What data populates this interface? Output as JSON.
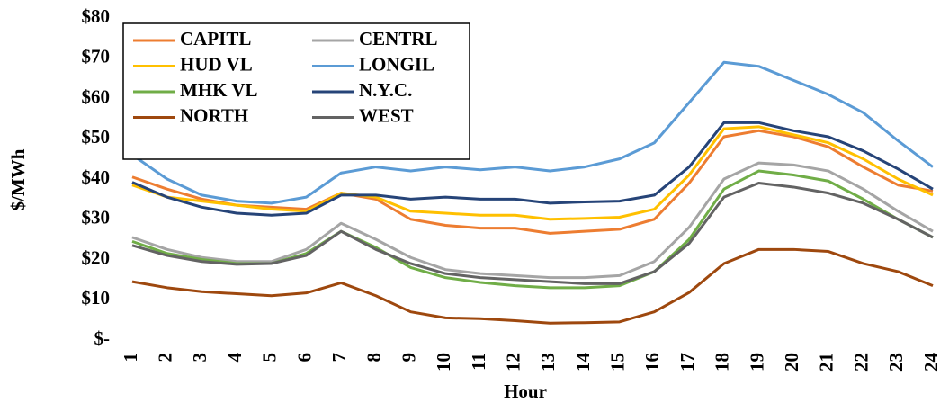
{
  "chart_data": {
    "type": "line",
    "xlabel": "Hour",
    "ylabel": "$/MWh",
    "categories": [
      1,
      2,
      3,
      4,
      5,
      6,
      7,
      8,
      9,
      10,
      11,
      12,
      13,
      14,
      15,
      16,
      17,
      18,
      19,
      20,
      21,
      22,
      23,
      24
    ],
    "series": [
      {
        "name": "CAPITL",
        "color": "#ED7D31",
        "values": [
          40.5,
          37.5,
          35,
          33.5,
          33,
          32.5,
          36.5,
          35,
          30,
          28.5,
          27.8,
          27.8,
          26.5,
          27,
          27.5,
          30,
          39,
          50.5,
          52,
          50.5,
          48,
          43,
          38.5,
          37
        ]
      },
      {
        "name": "CENTRL",
        "color": "#A5A5A5",
        "values": [
          25.5,
          22.5,
          20.5,
          19.5,
          19.5,
          22.5,
          29,
          25,
          20.5,
          17.5,
          16.5,
          16,
          15.5,
          15.5,
          16,
          19.5,
          28,
          40,
          44,
          43.5,
          42,
          37.5,
          32,
          27
        ]
      },
      {
        "name": "HUD VL",
        "color": "#FFC000",
        "values": [
          38.5,
          35.5,
          34.5,
          33.5,
          32.5,
          32,
          36.5,
          35.5,
          32,
          31.5,
          31,
          31,
          30,
          30.2,
          30.5,
          32.5,
          41,
          52.5,
          53,
          51,
          49,
          45,
          40,
          36
        ]
      },
      {
        "name": "LONGIL",
        "color": "#5B9BD5",
        "values": [
          46,
          40,
          36,
          34.5,
          34,
          35.5,
          41.5,
          43,
          42,
          43,
          42.3,
          43,
          42,
          43,
          45,
          49,
          59,
          69,
          68,
          64.5,
          61,
          56.5,
          49.5,
          43
        ]
      },
      {
        "name": "MHK VL",
        "color": "#70AD47",
        "values": [
          24.5,
          21.5,
          20,
          19,
          19,
          21.5,
          27,
          23,
          18,
          15.5,
          14.3,
          13.5,
          13,
          13,
          13.5,
          17,
          25,
          37.5,
          42,
          41,
          39.5,
          35,
          30,
          25.5
        ]
      },
      {
        "name": "N.Y.C.",
        "color": "#264478",
        "values": [
          39.2,
          35.5,
          33,
          31.5,
          31,
          31.5,
          36,
          36,
          35,
          35.5,
          35,
          35,
          34,
          34.3,
          34.5,
          36,
          43,
          54,
          54,
          52,
          50.5,
          47,
          42.5,
          37.5
        ]
      },
      {
        "name": "NORTH",
        "color": "#9E480E",
        "values": [
          14.5,
          13,
          12,
          11.5,
          11,
          11.7,
          14.2,
          11,
          7,
          5.5,
          5.3,
          4.8,
          4.2,
          4.3,
          4.5,
          7,
          11.8,
          19,
          22.5,
          22.5,
          22,
          19,
          17,
          13.5
        ]
      },
      {
        "name": "WEST",
        "color": "#636363",
        "values": [
          23.5,
          21,
          19.5,
          18.8,
          19,
          21,
          27,
          22.5,
          19,
          16.5,
          15.5,
          15,
          14.5,
          14,
          14,
          17,
          24,
          35.5,
          39,
          38,
          36.5,
          34,
          30,
          25.5
        ]
      }
    ],
    "ylim": [
      0,
      80
    ],
    "yticks": [
      {
        "value": 0,
        "label": "$-"
      },
      {
        "value": 10,
        "label": "$10"
      },
      {
        "value": 20,
        "label": "$20"
      },
      {
        "value": 30,
        "label": "$30"
      },
      {
        "value": 40,
        "label": "$40"
      },
      {
        "value": 50,
        "label": "$50"
      },
      {
        "value": 60,
        "label": "$60"
      },
      {
        "value": 70,
        "label": "$70"
      },
      {
        "value": 80,
        "label": "$80"
      }
    ],
    "legend": "upper left",
    "grid": false
  }
}
